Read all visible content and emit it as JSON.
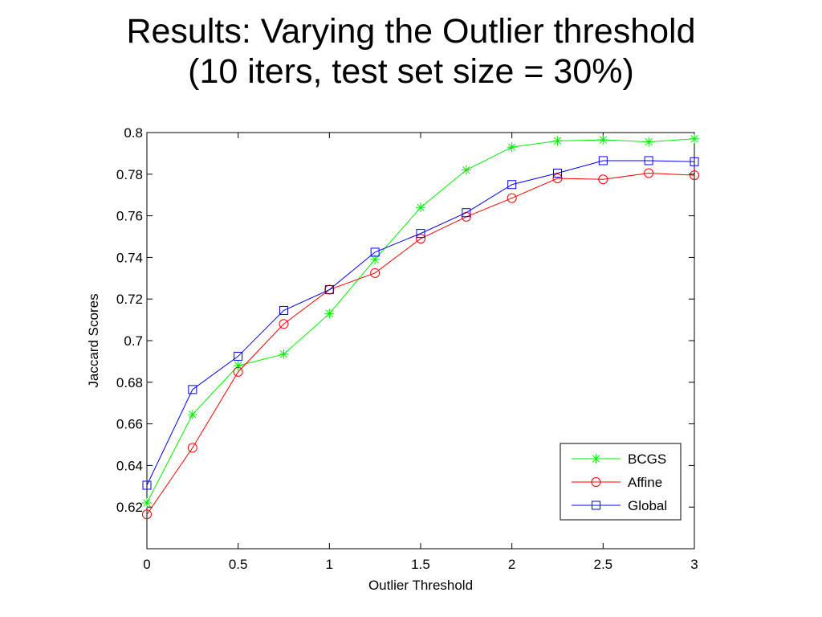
{
  "slide": {
    "title_line1": "Results: Varying the Outlier threshold",
    "title_line2": "(10 iters, test set size = 30%)"
  },
  "chart_data": {
    "type": "line",
    "xlabel": "Outlier Threshold",
    "ylabel": "Jaccard Scores",
    "xlim": [
      0,
      3
    ],
    "ylim": [
      0.6,
      0.8
    ],
    "xticks": [
      0,
      0.5,
      1,
      1.5,
      2,
      2.5,
      3
    ],
    "xtick_labels": [
      "0",
      "0.5",
      "1",
      "1.5",
      "2",
      "2.5",
      "3"
    ],
    "yticks": [
      0.62,
      0.64,
      0.66,
      0.68,
      0.7,
      0.72,
      0.74,
      0.76,
      0.78,
      0.8
    ],
    "ytick_labels": [
      "0.62",
      "0.64",
      "0.66",
      "0.68",
      "0.7",
      "0.72",
      "0.74",
      "0.76",
      "0.78",
      "0.8"
    ],
    "grid": false,
    "legend_position": "bottom-right",
    "x": [
      0,
      0.25,
      0.5,
      0.75,
      1,
      1.25,
      1.5,
      1.75,
      2,
      2.25,
      2.5,
      2.75,
      3
    ],
    "series": [
      {
        "name": "BCGS",
        "marker": "asterisk",
        "color": "#00ee00",
        "values": [
          0.622,
          0.6645,
          0.688,
          0.6935,
          0.713,
          0.739,
          0.764,
          0.782,
          0.793,
          0.796,
          0.7965,
          0.7955,
          0.797
        ]
      },
      {
        "name": "Affine",
        "marker": "circle",
        "color": "#ff0000",
        "values": [
          0.6165,
          0.6485,
          0.685,
          0.708,
          0.7245,
          0.7325,
          0.749,
          0.7595,
          0.7685,
          0.778,
          0.7775,
          0.7805,
          0.7795
        ]
      },
      {
        "name": "Global",
        "marker": "square",
        "color": "#0000ff",
        "values": [
          0.6305,
          0.6765,
          0.6925,
          0.7145,
          0.7245,
          0.7425,
          0.7515,
          0.7615,
          0.775,
          0.7805,
          0.7865,
          0.7865,
          0.786
        ]
      }
    ]
  }
}
